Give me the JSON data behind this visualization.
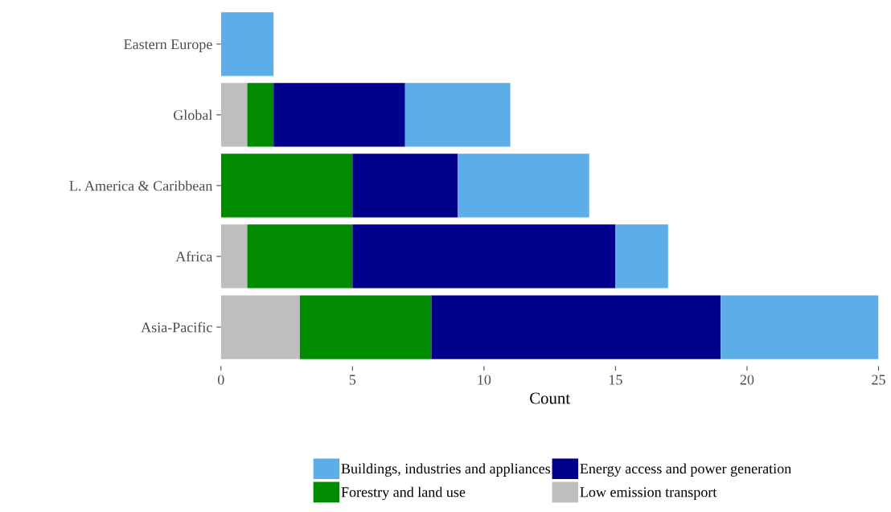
{
  "chart_data": {
    "type": "bar",
    "orientation": "horizontal",
    "stacked": true,
    "xlabel": "Count",
    "categories": [
      "Eastern Europe",
      "Global",
      "L. America & Caribbean",
      "Africa",
      "Asia-Pacific"
    ],
    "series": [
      {
        "name": "Low emission transport",
        "color": "#bebebe",
        "values": [
          0,
          1,
          0,
          1,
          3
        ]
      },
      {
        "name": "Forestry and land use",
        "color": "#008b00",
        "values": [
          0,
          1,
          5,
          4,
          5
        ]
      },
      {
        "name": "Energy access and power generation",
        "color": "#00008b",
        "values": [
          0,
          5,
          4,
          10,
          11
        ]
      },
      {
        "name": "Buildings, industries and appliances",
        "color": "#5dade8",
        "values": [
          2,
          4,
          5,
          2,
          6
        ]
      }
    ],
    "xlim": [
      0,
      25
    ],
    "xticks": [
      0,
      5,
      10,
      15,
      20,
      25
    ],
    "grid": false,
    "legend": "bottom"
  }
}
